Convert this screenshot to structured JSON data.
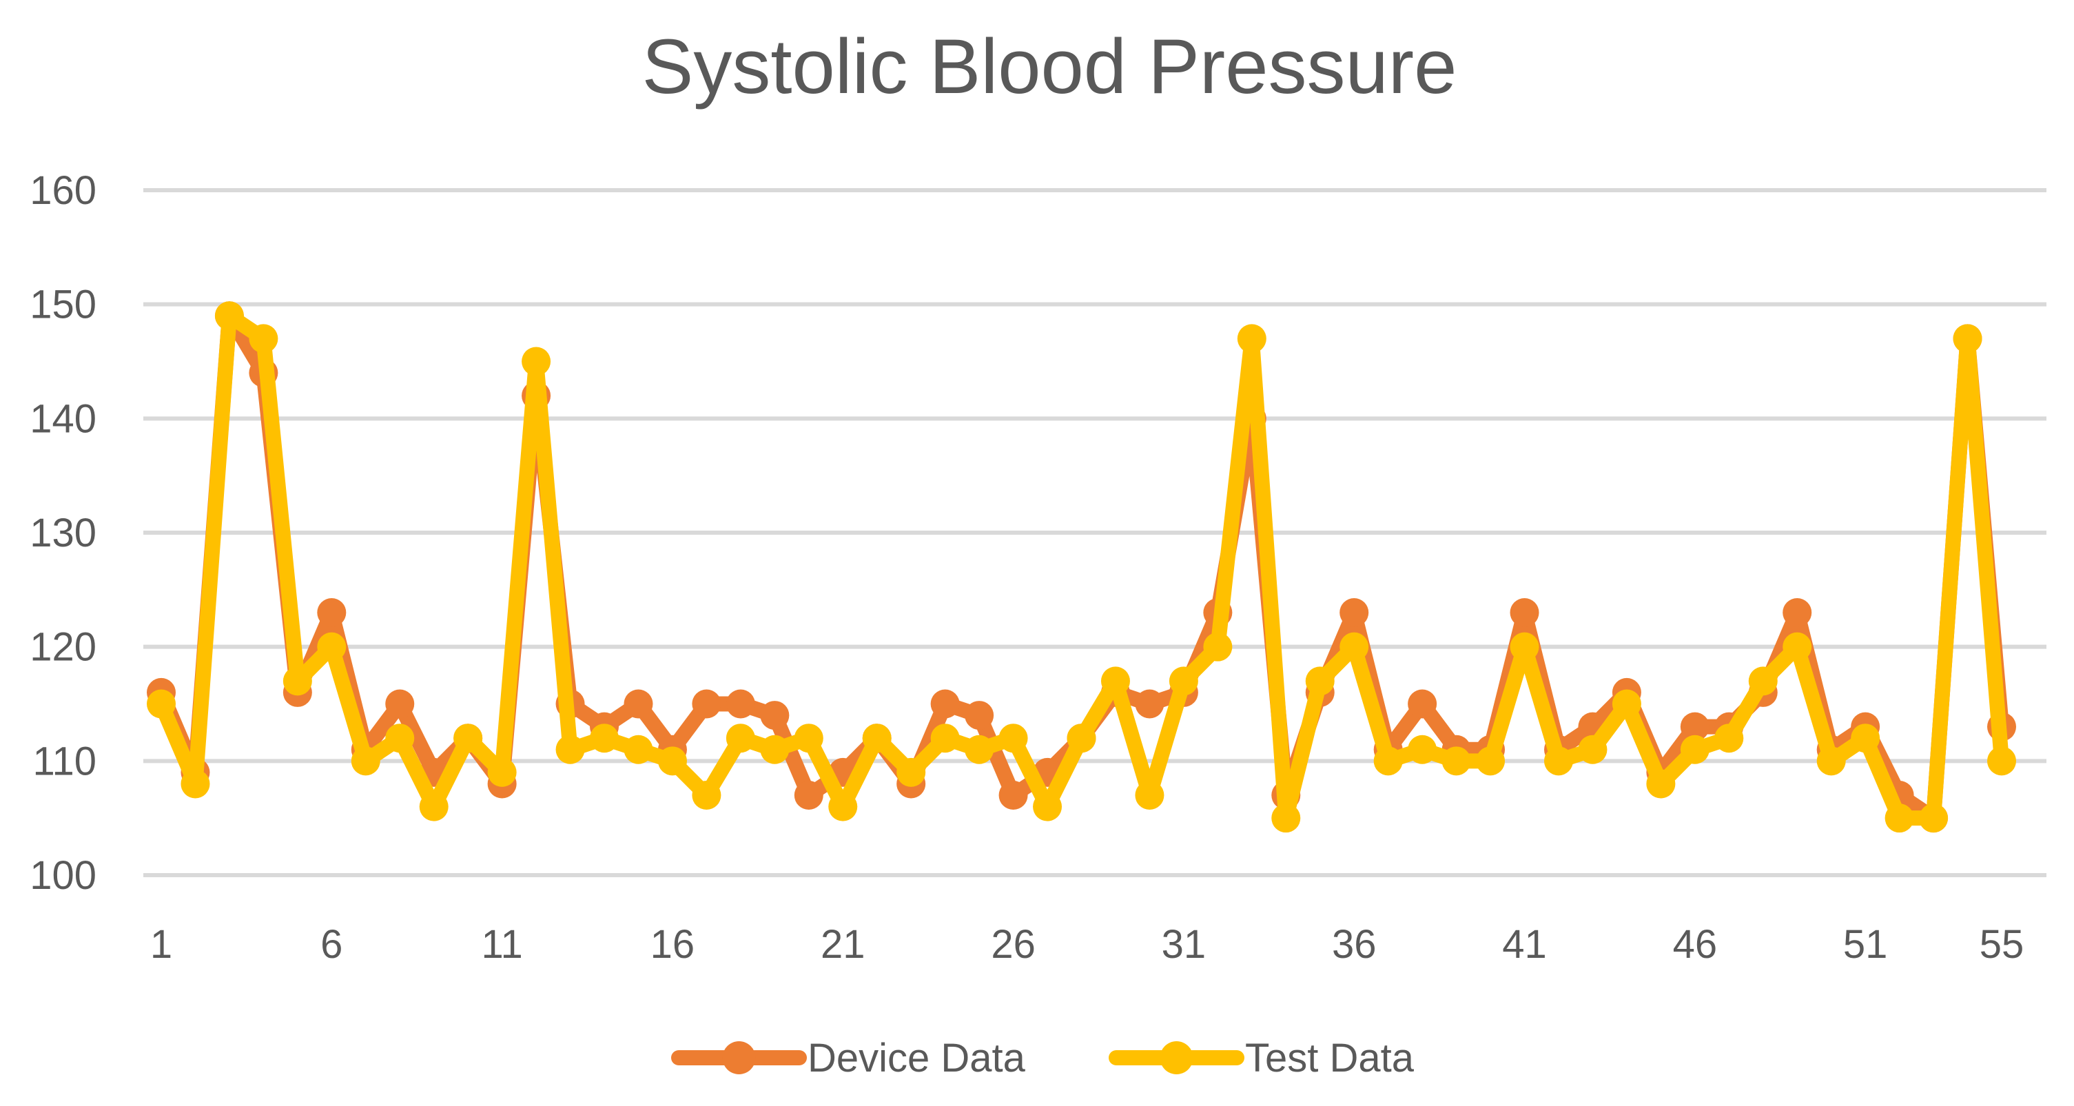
{
  "chart_data": {
    "type": "line",
    "title": "Systolic Blood Pressure",
    "xlabel": "",
    "ylabel": "",
    "ylim": [
      100,
      160
    ],
    "y_ticks": [
      100,
      110,
      120,
      130,
      140,
      150,
      160
    ],
    "x": [
      1,
      2,
      3,
      4,
      5,
      6,
      7,
      8,
      9,
      10,
      11,
      12,
      13,
      14,
      15,
      16,
      17,
      18,
      19,
      20,
      21,
      22,
      23,
      24,
      25,
      26,
      27,
      28,
      29,
      30,
      31,
      32,
      33,
      34,
      35,
      36,
      37,
      38,
      39,
      40,
      41,
      42,
      43,
      44,
      45,
      46,
      47,
      48,
      49,
      50,
      51,
      52,
      53,
      54,
      55
    ],
    "x_tick_labels": [
      "1",
      "6",
      "11",
      "16",
      "21",
      "26",
      "31",
      "36",
      "41",
      "46",
      "51",
      "55"
    ],
    "grid": true,
    "legend_position": "bottom",
    "series": [
      {
        "name": "Device Data",
        "color": "#ED7D31",
        "values": [
          116,
          109,
          149,
          144,
          116,
          123,
          111,
          115,
          109,
          112,
          108,
          142,
          115,
          113,
          115,
          111,
          115,
          115,
          114,
          107,
          109,
          112,
          108,
          115,
          114,
          107,
          109,
          112,
          116,
          115,
          116,
          123,
          140,
          107,
          116,
          123,
          111,
          115,
          111,
          111,
          123,
          111,
          113,
          116,
          109,
          113,
          113,
          116,
          123,
          111,
          113,
          107,
          105,
          147,
          113
        ]
      },
      {
        "name": "Test Data",
        "color": "#FFC000",
        "values": [
          115,
          108,
          149,
          147,
          117,
          120,
          110,
          112,
          106,
          112,
          109,
          145,
          111,
          112,
          111,
          110,
          107,
          112,
          111,
          112,
          106,
          112,
          109,
          112,
          111,
          112,
          106,
          112,
          117,
          107,
          117,
          120,
          147,
          105,
          117,
          120,
          110,
          111,
          110,
          110,
          120,
          110,
          111,
          115,
          108,
          111,
          112,
          117,
          120,
          110,
          112,
          105,
          105,
          147,
          110
        ]
      }
    ]
  }
}
